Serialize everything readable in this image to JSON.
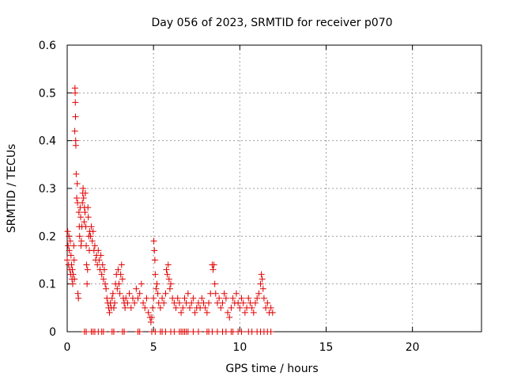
{
  "chart_data": {
    "type": "scatter",
    "title": "Day 056 of 2023, SRMTID for receiver p070",
    "xlabel": "GPS time / hours",
    "ylabel": "SRMTID / TECUs",
    "xlim": [
      0,
      24
    ],
    "ylim": [
      0,
      0.6
    ],
    "xticks": [
      0,
      5,
      10,
      15,
      20
    ],
    "xtick_labels": [
      "0",
      "5",
      "10",
      "15",
      "20"
    ],
    "yticks": [
      0,
      0.1,
      0.2,
      0.3,
      0.4,
      0.5,
      0.6
    ],
    "ytick_labels": [
      "0",
      "0.1",
      "0.2",
      "0.3",
      "0.4",
      "0.5",
      "0.6"
    ],
    "grid": true,
    "marker": "+",
    "color": "#e00000",
    "series": [
      {
        "name": "p070",
        "points": [
          [
            0.0,
            0.15
          ],
          [
            0.03,
            0.21
          ],
          [
            0.05,
            0.18
          ],
          [
            0.08,
            0.14
          ],
          [
            0.1,
            0.2
          ],
          [
            0.12,
            0.17
          ],
          [
            0.15,
            0.13
          ],
          [
            0.18,
            0.19
          ],
          [
            0.2,
            0.12
          ],
          [
            0.22,
            0.16
          ],
          [
            0.25,
            0.14
          ],
          [
            0.28,
            0.11
          ],
          [
            0.3,
            0.13
          ],
          [
            0.32,
            0.1
          ],
          [
            0.35,
            0.12
          ],
          [
            0.38,
            0.18
          ],
          [
            0.4,
            0.15
          ],
          [
            0.42,
            0.11
          ],
          [
            0.44,
            0.42
          ],
          [
            0.45,
            0.51
          ],
          [
            0.46,
            0.5
          ],
          [
            0.47,
            0.48
          ],
          [
            0.48,
            0.45
          ],
          [
            0.49,
            0.4
          ],
          [
            0.5,
            0.39
          ],
          [
            0.52,
            0.33
          ],
          [
            0.55,
            0.28
          ],
          [
            0.58,
            0.31
          ],
          [
            0.6,
            0.27
          ],
          [
            0.62,
            0.08
          ],
          [
            0.65,
            0.07
          ],
          [
            0.68,
            0.25
          ],
          [
            0.7,
            0.22
          ],
          [
            0.72,
            0.2
          ],
          [
            0.75,
            0.26
          ],
          [
            0.78,
            0.24
          ],
          [
            0.8,
            0.18
          ],
          [
            0.82,
            0.19
          ],
          [
            0.85,
            0.22
          ],
          [
            0.88,
            0.27
          ],
          [
            0.9,
            0.29
          ],
          [
            0.92,
            0.3
          ],
          [
            0.95,
            0.28
          ],
          [
            0.98,
            0.23
          ],
          [
            1.0,
            0.26
          ],
          [
            1.03,
            0.25
          ],
          [
            1.05,
            0.29
          ],
          [
            1.08,
            0.22
          ],
          [
            1.1,
            0.18
          ],
          [
            1.12,
            0.14
          ],
          [
            1.15,
            0.1
          ],
          [
            1.18,
            0.13
          ],
          [
            1.2,
            0.26
          ],
          [
            1.22,
            0.24
          ],
          [
            1.25,
            0.2
          ],
          [
            1.28,
            0.17
          ],
          [
            1.3,
            0.21
          ],
          [
            1.35,
            0.2
          ],
          [
            1.4,
            0.22
          ],
          [
            1.45,
            0.19
          ],
          [
            1.5,
            0.21
          ],
          [
            1.55,
            0.17
          ],
          [
            1.6,
            0.18
          ],
          [
            1.65,
            0.15
          ],
          [
            1.7,
            0.16
          ],
          [
            1.75,
            0.14
          ],
          [
            1.8,
            0.17
          ],
          [
            1.85,
            0.15
          ],
          [
            1.9,
            0.13
          ],
          [
            1.95,
            0.16
          ],
          [
            2.0,
            0.12
          ],
          [
            2.05,
            0.14
          ],
          [
            2.1,
            0.11
          ],
          [
            2.15,
            0.13
          ],
          [
            2.2,
            0.1
          ],
          [
            2.25,
            0.09
          ],
          [
            2.3,
            0.07
          ],
          [
            2.35,
            0.06
          ],
          [
            2.4,
            0.05
          ],
          [
            2.45,
            0.04
          ],
          [
            2.5,
            0.06
          ],
          [
            2.55,
            0.05
          ],
          [
            2.6,
            0.07
          ],
          [
            2.65,
            0.08
          ],
          [
            2.7,
            0.05
          ],
          [
            2.75,
            0.06
          ],
          [
            2.8,
            0.1
          ],
          [
            2.85,
            0.12
          ],
          [
            2.9,
            0.09
          ],
          [
            2.95,
            0.13
          ],
          [
            3.0,
            0.1
          ],
          [
            3.05,
            0.08
          ],
          [
            3.1,
            0.12
          ],
          [
            3.15,
            0.14
          ],
          [
            3.2,
            0.11
          ],
          [
            3.25,
            0.07
          ],
          [
            3.3,
            0.06
          ],
          [
            3.35,
            0.05
          ],
          [
            3.4,
            0.07
          ],
          [
            3.5,
            0.06
          ],
          [
            3.6,
            0.08
          ],
          [
            3.7,
            0.05
          ],
          [
            3.8,
            0.07
          ],
          [
            3.9,
            0.06
          ],
          [
            4.0,
            0.09
          ],
          [
            4.1,
            0.07
          ],
          [
            4.2,
            0.08
          ],
          [
            4.3,
            0.1
          ],
          [
            4.4,
            0.06
          ],
          [
            4.5,
            0.05
          ],
          [
            4.6,
            0.07
          ],
          [
            4.7,
            0.04
          ],
          [
            4.8,
            0.03
          ],
          [
            4.85,
            0.02
          ],
          [
            4.9,
            0.03
          ],
          [
            4.95,
            0.05
          ],
          [
            5.0,
            0.07
          ],
          [
            5.02,
            0.19
          ],
          [
            5.05,
            0.17
          ],
          [
            5.08,
            0.15
          ],
          [
            5.1,
            0.12
          ],
          [
            5.15,
            0.09
          ],
          [
            5.2,
            0.1
          ],
          [
            5.25,
            0.08
          ],
          [
            5.3,
            0.06
          ],
          [
            5.4,
            0.05
          ],
          [
            5.5,
            0.07
          ],
          [
            5.6,
            0.06
          ],
          [
            5.7,
            0.08
          ],
          [
            5.75,
            0.13
          ],
          [
            5.8,
            0.12
          ],
          [
            5.85,
            0.14
          ],
          [
            5.9,
            0.11
          ],
          [
            5.95,
            0.09
          ],
          [
            6.0,
            0.1
          ],
          [
            6.1,
            0.07
          ],
          [
            6.2,
            0.06
          ],
          [
            6.3,
            0.05
          ],
          [
            6.4,
            0.07
          ],
          [
            6.5,
            0.06
          ],
          [
            6.6,
            0.04
          ],
          [
            6.7,
            0.05
          ],
          [
            6.8,
            0.07
          ],
          [
            6.9,
            0.06
          ],
          [
            7.0,
            0.08
          ],
          [
            7.1,
            0.05
          ],
          [
            7.2,
            0.06
          ],
          [
            7.3,
            0.07
          ],
          [
            7.4,
            0.04
          ],
          [
            7.5,
            0.05
          ],
          [
            7.6,
            0.06
          ],
          [
            7.7,
            0.05
          ],
          [
            7.8,
            0.07
          ],
          [
            7.9,
            0.06
          ],
          [
            8.0,
            0.05
          ],
          [
            8.1,
            0.04
          ],
          [
            8.2,
            0.06
          ],
          [
            8.3,
            0.08
          ],
          [
            8.4,
            0.14
          ],
          [
            8.45,
            0.13
          ],
          [
            8.5,
            0.14
          ],
          [
            8.55,
            0.1
          ],
          [
            8.6,
            0.08
          ],
          [
            8.7,
            0.06
          ],
          [
            8.8,
            0.07
          ],
          [
            8.9,
            0.05
          ],
          [
            9.0,
            0.06
          ],
          [
            9.1,
            0.08
          ],
          [
            9.2,
            0.07
          ],
          [
            9.3,
            0.04
          ],
          [
            9.4,
            0.03
          ],
          [
            9.5,
            0.05
          ],
          [
            9.6,
            0.07
          ],
          [
            9.7,
            0.06
          ],
          [
            9.8,
            0.08
          ],
          [
            9.9,
            0.06
          ],
          [
            10.0,
            0.05
          ],
          [
            10.1,
            0.07
          ],
          [
            10.2,
            0.06
          ],
          [
            10.3,
            0.04
          ],
          [
            10.4,
            0.05
          ],
          [
            10.5,
            0.07
          ],
          [
            10.6,
            0.06
          ],
          [
            10.7,
            0.05
          ],
          [
            10.8,
            0.04
          ],
          [
            10.9,
            0.06
          ],
          [
            11.0,
            0.07
          ],
          [
            11.1,
            0.08
          ],
          [
            11.2,
            0.1
          ],
          [
            11.25,
            0.12
          ],
          [
            11.3,
            0.11
          ],
          [
            11.35,
            0.09
          ],
          [
            11.4,
            0.07
          ],
          [
            11.5,
            0.05
          ],
          [
            11.6,
            0.06
          ],
          [
            11.7,
            0.04
          ],
          [
            11.8,
            0.05
          ],
          [
            11.9,
            0.04
          ],
          [
            1.0,
            0.0
          ],
          [
            1.1,
            0.0
          ],
          [
            1.4,
            0.0
          ],
          [
            1.5,
            0.0
          ],
          [
            1.6,
            0.0
          ],
          [
            1.8,
            0.0
          ],
          [
            2.0,
            0.0
          ],
          [
            2.1,
            0.0
          ],
          [
            2.6,
            0.0
          ],
          [
            2.7,
            0.0
          ],
          [
            3.2,
            0.0
          ],
          [
            3.3,
            0.0
          ],
          [
            4.1,
            0.0
          ],
          [
            4.2,
            0.0
          ],
          [
            4.9,
            0.0
          ],
          [
            5.1,
            0.0
          ],
          [
            5.4,
            0.0
          ],
          [
            5.5,
            0.0
          ],
          [
            5.7,
            0.0
          ],
          [
            6.0,
            0.0
          ],
          [
            6.2,
            0.0
          ],
          [
            6.5,
            0.0
          ],
          [
            6.6,
            0.0
          ],
          [
            6.7,
            0.0
          ],
          [
            6.8,
            0.0
          ],
          [
            6.9,
            0.0
          ],
          [
            7.0,
            0.0
          ],
          [
            7.3,
            0.0
          ],
          [
            7.6,
            0.0
          ],
          [
            8.1,
            0.0
          ],
          [
            8.2,
            0.0
          ],
          [
            8.4,
            0.0
          ],
          [
            8.7,
            0.0
          ],
          [
            9.0,
            0.0
          ],
          [
            9.2,
            0.0
          ],
          [
            9.5,
            0.0
          ],
          [
            9.6,
            0.0
          ],
          [
            9.9,
            0.0
          ],
          [
            10.1,
            0.0
          ],
          [
            10.5,
            0.0
          ],
          [
            10.7,
            0.0
          ],
          [
            11.0,
            0.0
          ],
          [
            11.2,
            0.0
          ],
          [
            11.4,
            0.0
          ],
          [
            11.6,
            0.0
          ],
          [
            11.8,
            0.0
          ]
        ]
      }
    ]
  }
}
